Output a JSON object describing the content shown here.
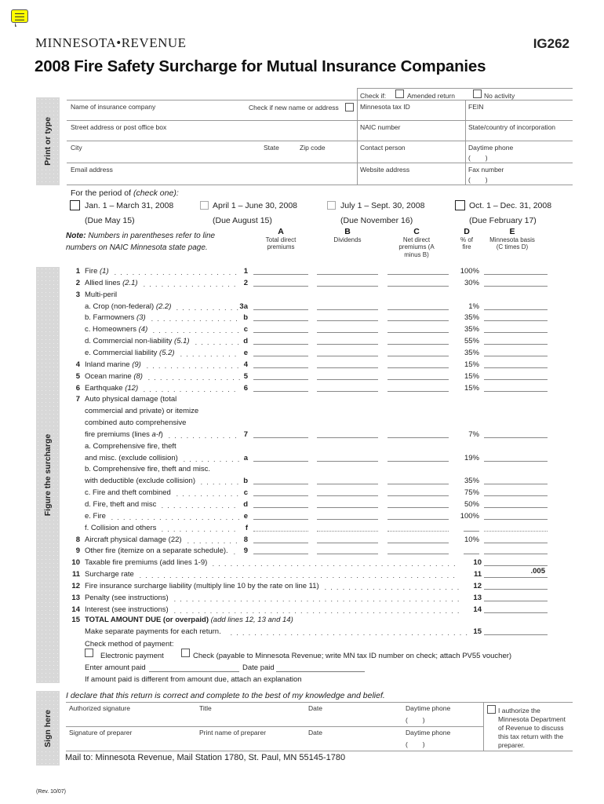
{
  "header": {
    "agency": "MINNESOTA•REVENUE",
    "form_number": "IG262",
    "title": "2008 Fire Safety Surcharge for Mutual Insurance Companies"
  },
  "side_labels": {
    "print": "Print or type",
    "figure": "Figure the surcharge",
    "sign": "Sign here"
  },
  "info": {
    "check_if": "Check if:",
    "amended": "Amended return",
    "no_activity": "No activity",
    "company_name": "Name of insurance company",
    "new_name": "Check if new name or address",
    "mn_tax_id": "Minnesota tax ID",
    "fein": "FEIN",
    "street": "Street address or post office box",
    "naic": "NAIC number",
    "state_country": "State/country of incorporation",
    "city": "City",
    "state": "State",
    "zip": "Zip code",
    "contact": "Contact person",
    "daytime_phone": "Daytime phone",
    "phone_parens": "(        )",
    "email": "Email address",
    "website": "Website address",
    "fax": "Fax number"
  },
  "period": {
    "label": "For the period of ",
    "label_italic": "(check one):",
    "options": [
      {
        "label": "Jan. 1 – March 31, 2008",
        "due": "(Due May 15)"
      },
      {
        "label": "April 1 – June 30, 2008",
        "due": "(Due August 15)"
      },
      {
        "label": "July 1 – Sept. 30, 2008",
        "due": "(Due November 16)"
      },
      {
        "label": "Oct. 1 – Dec. 31, 2008",
        "due": "(Due February 17)"
      }
    ]
  },
  "note": {
    "bold": "Note:",
    "text": " Numbers in parentheses refer to line numbers on NAIC Minnesota state page."
  },
  "columns": [
    {
      "letter": "A",
      "desc": "Total direct premiums"
    },
    {
      "letter": "B",
      "desc": "Dividends"
    },
    {
      "letter": "C",
      "desc": "Net direct premiums (A minus B)"
    },
    {
      "letter": "D",
      "desc": "% of fire"
    },
    {
      "letter": "E",
      "desc": "Minnesota basis (C times D)"
    }
  ],
  "rows": [
    {
      "n": "1",
      "label": "Fire ",
      "it": "(1)",
      "ref": "1",
      "d": "100%",
      "f": 1
    },
    {
      "n": "2",
      "label": "Allied lines ",
      "it": "(2.1)",
      "ref": "2",
      "d": "30%",
      "f": 1
    },
    {
      "n": "3",
      "label": "Multi-peril"
    },
    {
      "label": "a. Crop (non-federal) ",
      "it": "(2.2)",
      "ref": "3a",
      "d": "1%",
      "f": 1
    },
    {
      "label": "b. Farmowners ",
      "it": "(3)",
      "ref": "b",
      "d": "35%",
      "f": 1
    },
    {
      "label": "c. Homeowners ",
      "it": "(4)",
      "ref": "c",
      "d": "35%",
      "f": 1
    },
    {
      "label": "d. Commercial non-liability ",
      "it": "(5.1)",
      "ref": "d",
      "d": "55%",
      "f": 1
    },
    {
      "label": "e. Commercial liability ",
      "it": "(5.2)",
      "ref": "e",
      "d": "35%",
      "f": 1
    },
    {
      "n": "4",
      "label": "Inland marine ",
      "it": "(9)",
      "ref": "4",
      "d": "15%",
      "f": 1
    },
    {
      "n": "5",
      "label": "Ocean marine ",
      "it": "(8)",
      "ref": "5",
      "d": "15%",
      "f": 1
    },
    {
      "n": "6",
      "label": "Earthquake ",
      "it": "(12)",
      "ref": "6",
      "d": "15%",
      "f": 1
    },
    {
      "n": "7",
      "label": "Auto physical damage (total"
    },
    {
      "label": "commercial and private) or itemize"
    },
    {
      "label": "combined auto comprehensive"
    },
    {
      "label": "fire premiums (lines ",
      "it": "a-f",
      "post": ")",
      "ref": "7",
      "d": "7%",
      "f": 1
    },
    {
      "label": "a. Comprehensive fire, theft"
    },
    {
      "label": "and misc. (exclude collision)",
      "ref": "a",
      "d": "19%",
      "f": 1
    },
    {
      "label": "b. Comprehensive fire, theft and misc."
    },
    {
      "label": "with deductible (exclude collision)",
      "ref": "b",
      "d": "35%",
      "f": 1
    },
    {
      "label": "c. Fire and theft combined",
      "ref": "c",
      "d": "75%",
      "f": 1
    },
    {
      "label": "d. Fire, theft and misc",
      "ref": "d",
      "d": "50%",
      "f": 1
    },
    {
      "label": "e. Fire",
      "ref": "e",
      "d": "100%",
      "f": 1
    },
    {
      "label": "f. Collision and others",
      "ref": "f",
      "f": 2
    },
    {
      "n": "8",
      "label": "Aircraft physical damage (22)",
      "ref": "8",
      "d": "10%",
      "f": 1
    },
    {
      "n": "9",
      "label": "Other fire (itemize on a separate schedule).",
      "ref": "9",
      "f": 1
    }
  ],
  "totals": [
    {
      "n": "10",
      "label": "Taxable fire premiums (add lines 1-9)",
      "ref": "10"
    },
    {
      "n": "11",
      "label": "Surcharge rate",
      "ref": "11",
      "value": ".005"
    },
    {
      "n": "12",
      "label": "Fire insurance surcharge liability (multiply line 10 by the rate on line 11)",
      "ref": "12"
    },
    {
      "n": "13",
      "label": "Penalty (see instructions)",
      "ref": "13"
    },
    {
      "n": "14",
      "label": "Interest (see instructions)",
      "ref": "14"
    }
  ],
  "line15": {
    "n": "15",
    "bold": "TOTAL AMOUNT DUE (or overpaid)",
    "italic": " (add lines 12, 13 and 14)",
    "sub": "Make separate payments for each return.",
    "ref": "15"
  },
  "payment": {
    "method": "Check method of payment:",
    "electronic": "Electronic payment",
    "check": "Check (payable to Minnesota Revenue; write MN tax ID number on check; attach PV55 voucher)",
    "amount_paid": "Enter amount paid",
    "date_paid": "Date paid",
    "explain": "If amount paid is different from amount due, attach an explanation"
  },
  "sign": {
    "declare": "I declare that this return is correct and complete to the best of my knowledge and belief.",
    "auth_sig": "Authorized signature",
    "title": "Title",
    "date": "Date",
    "phone": "Daytime phone",
    "phone_parens": "(        )",
    "prep_sig": "Signature of preparer",
    "prep_name": "Print name of preparer",
    "authorize": "I authorize the Minnesota Department of Revenue to discuss this tax return with the preparer."
  },
  "mail": "Mail to: Minnesota Revenue, Mail Station 1780, St. Paul, MN 55145-1780",
  "rev": "(Rev. 10/07)"
}
